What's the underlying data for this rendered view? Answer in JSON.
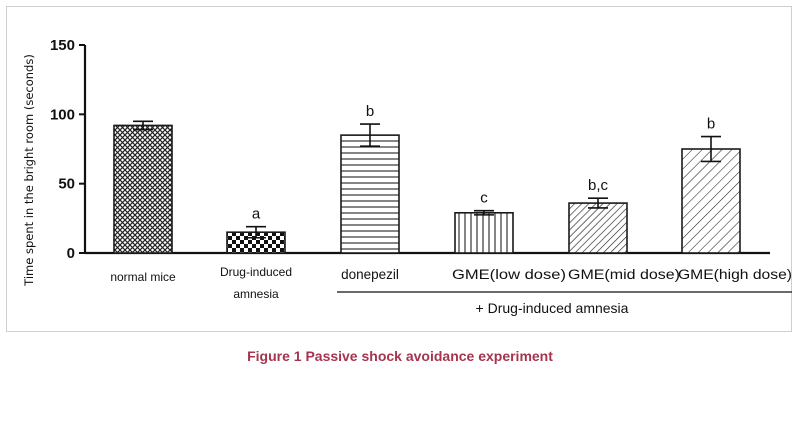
{
  "caption": "Figure 1 Passive shock avoidance experiment",
  "chart_data": {
    "type": "bar",
    "title": "",
    "ylabel": "Time spent in the bright room (seconds)",
    "xlabel": "",
    "ylim": [
      0,
      150
    ],
    "yticks": [
      0,
      50,
      100,
      150
    ],
    "grid": false,
    "categories": [
      "normal mice",
      "Drug-induced amnesia",
      "donepezil",
      "GME(low dose)",
      "GME(mid dose)",
      "GME(high dose)"
    ],
    "values": [
      92,
      15,
      85,
      29,
      36,
      75
    ],
    "errors": [
      3,
      4,
      8,
      1.5,
      3.5,
      9
    ],
    "significance": [
      "",
      "a",
      "b",
      "c",
      "b,c",
      "b"
    ],
    "patterns": [
      "crosshatch",
      "checker",
      "horizontal",
      "vertical",
      "diagonal",
      "diagonal-wide"
    ],
    "group_annotation": {
      "label": "+ Drug-induced amnesia",
      "spans_categories": [
        "donepezil",
        "GME(low dose)",
        "GME(mid dose)",
        "GME(high dose)"
      ]
    }
  },
  "colors": {
    "bar_stroke": "#1a1a1a",
    "bar_fill": "#ffffff",
    "caption": "#a5344f",
    "frame_border": "#cfcfcf"
  }
}
